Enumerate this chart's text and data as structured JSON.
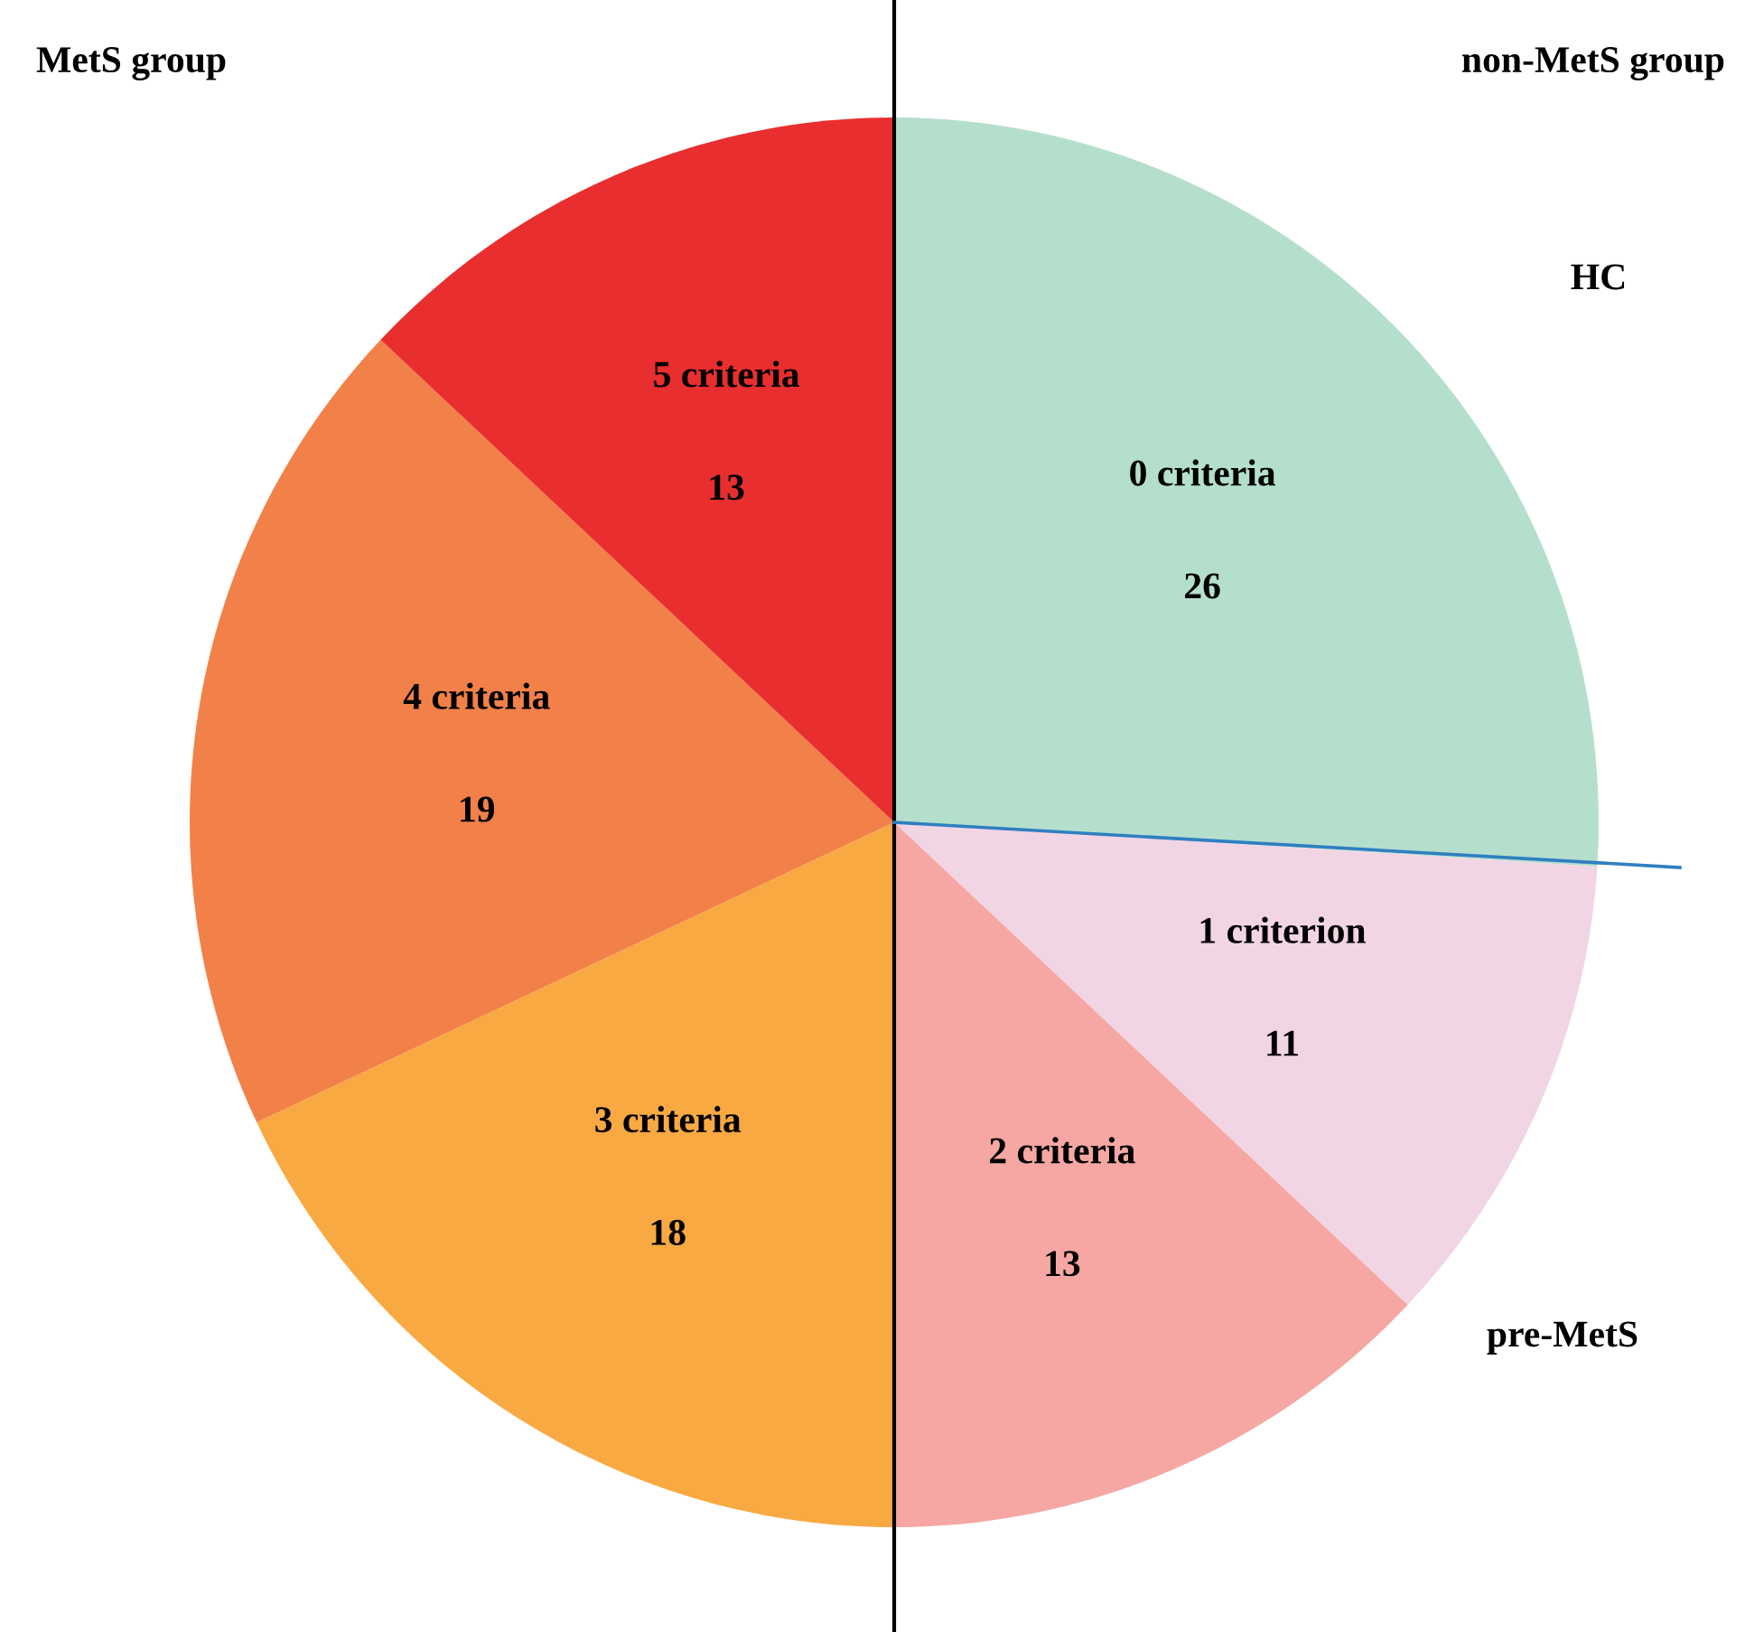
{
  "chart_data": {
    "type": "pie",
    "categories": [
      "0 criteria",
      "1 criterion",
      "2 criteria",
      "3 criteria",
      "4 criteria",
      "5 criteria"
    ],
    "values": [
      26,
      11,
      13,
      18,
      19,
      13
    ],
    "colors": [
      "#b5dfcd",
      "#f2d5e4",
      "#f6a7a3",
      "#f9a942",
      "#f28049",
      "#e82e2f"
    ],
    "data_labels": true,
    "annotations": [
      "MetS group",
      "non-MetS group",
      "HC",
      "pre-MetS"
    ]
  }
}
